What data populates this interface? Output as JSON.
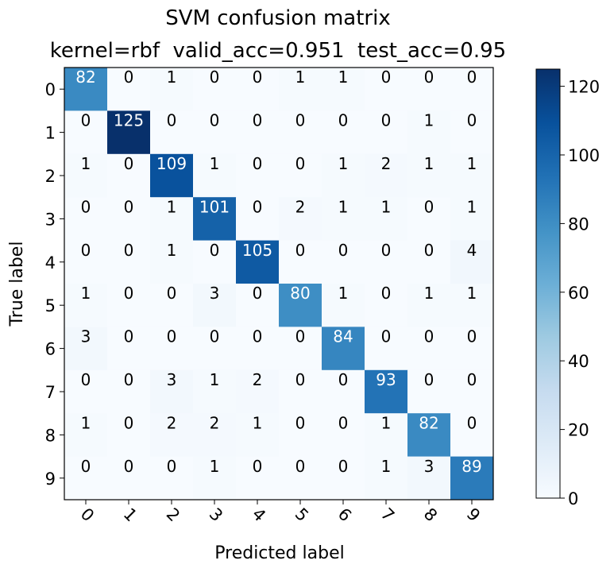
{
  "chart_data": {
    "type": "heatmap",
    "title_line1": "SVM confusion matrix",
    "title_line2": "kernel=rbf  valid_acc=0.951  test_acc=0.95",
    "xlabel": "Predicted label",
    "ylabel": "True label",
    "x_categories": [
      "0",
      "1",
      "2",
      "3",
      "4",
      "5",
      "6",
      "7",
      "8",
      "9"
    ],
    "y_categories": [
      "0",
      "1",
      "2",
      "3",
      "4",
      "5",
      "6",
      "7",
      "8",
      "9"
    ],
    "values": [
      [
        82,
        0,
        1,
        0,
        0,
        1,
        1,
        0,
        0,
        0
      ],
      [
        0,
        125,
        0,
        0,
        0,
        0,
        0,
        0,
        1,
        0
      ],
      [
        1,
        0,
        109,
        1,
        0,
        0,
        1,
        2,
        1,
        1
      ],
      [
        0,
        0,
        1,
        101,
        0,
        2,
        1,
        1,
        0,
        1
      ],
      [
        0,
        0,
        1,
        0,
        105,
        0,
        0,
        0,
        0,
        4
      ],
      [
        1,
        0,
        0,
        3,
        0,
        80,
        1,
        0,
        1,
        1
      ],
      [
        3,
        0,
        0,
        0,
        0,
        0,
        84,
        0,
        0,
        0
      ],
      [
        0,
        0,
        3,
        1,
        2,
        0,
        0,
        93,
        0,
        0
      ],
      [
        1,
        0,
        2,
        2,
        1,
        0,
        0,
        1,
        82,
        0
      ],
      [
        0,
        0,
        0,
        1,
        0,
        0,
        0,
        1,
        3,
        89
      ]
    ],
    "colormap": "Blues",
    "vmin": 0,
    "vmax": 125,
    "colorbar_ticks": [
      0,
      20,
      40,
      60,
      80,
      100,
      120
    ],
    "colorbar_tick_labels": [
      "0",
      "20",
      "40",
      "60",
      "80",
      "100",
      "120"
    ],
    "x_tick_rotation_deg": 45,
    "grid": false
  }
}
